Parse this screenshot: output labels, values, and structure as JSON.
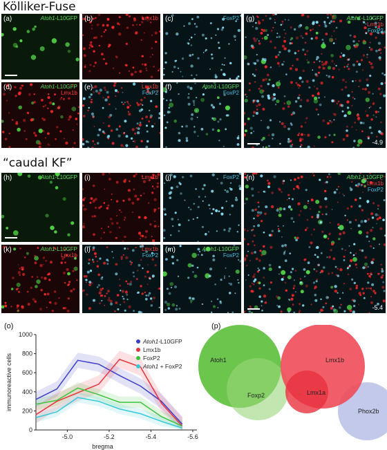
{
  "sections": {
    "top_title": "Kölliker-Fuse",
    "mid_title": "“caudal KF”"
  },
  "panels": {
    "a": {
      "letter": "(a)",
      "labels": [
        {
          "text": "Atoh1",
          "suffix": "-L10GFP",
          "color": "g"
        }
      ]
    },
    "b": {
      "letter": "(b)",
      "labels": [
        {
          "text": "Lmx1b",
          "color": "r"
        }
      ]
    },
    "c": {
      "letter": "(c)",
      "labels": [
        {
          "text": "FoxP2",
          "color": "c"
        }
      ]
    },
    "d": {
      "letter": "(d)",
      "labels": [
        {
          "text": "Atoh1",
          "suffix": "-L10GFP",
          "color": "g"
        },
        {
          "text": "Lmx1b",
          "color": "r"
        }
      ]
    },
    "e": {
      "letter": "(e)",
      "labels": [
        {
          "text": "Lmx1b",
          "color": "r"
        },
        {
          "text": "FoxP2",
          "color": "c"
        }
      ]
    },
    "f": {
      "letter": "(f)",
      "labels": [
        {
          "text": "Atoh1",
          "suffix": "-L10GFP",
          "color": "g"
        },
        {
          "text": "FoxP2",
          "color": "c"
        }
      ]
    },
    "g": {
      "letter": "(g)",
      "labels": [
        {
          "text": "Atoh1",
          "suffix": "-L10GFP",
          "color": "g"
        },
        {
          "text": "Lmx1b",
          "color": "r"
        },
        {
          "text": "FoxP2",
          "color": "c"
        }
      ],
      "number": "-4.9"
    },
    "h": {
      "letter": "(h)",
      "labels": [
        {
          "text": "Atoh1",
          "suffix": "-L10GFP",
          "color": "g"
        }
      ]
    },
    "i": {
      "letter": "(i)",
      "labels": [
        {
          "text": "Lmx1b",
          "color": "r"
        }
      ]
    },
    "j": {
      "letter": "(j)",
      "labels": [
        {
          "text": "FoxP2",
          "color": "c"
        }
      ]
    },
    "k": {
      "letter": "(k)",
      "labels": [
        {
          "text": "Atoh1",
          "suffix": "-L10GFP",
          "color": "g"
        },
        {
          "text": "Lmx1b",
          "color": "r"
        }
      ]
    },
    "l": {
      "letter": "(l)",
      "labels": [
        {
          "text": "Lmx1b",
          "color": "r"
        },
        {
          "text": "FoxP2",
          "color": "c"
        }
      ]
    },
    "m": {
      "letter": "(m)",
      "labels": [
        {
          "text": "Atoh1",
          "suffix": "-L10GFP",
          "color": "g"
        },
        {
          "text": "FoxP2",
          "color": "c"
        }
      ]
    },
    "n": {
      "letter": "(n)",
      "labels": [
        {
          "text": "Atoh1",
          "suffix": "-L10GFP",
          "color": "g"
        },
        {
          "text": "Lmx1b",
          "color": "r"
        },
        {
          "text": "FoxP2",
          "color": "c"
        }
      ],
      "number": "-5.4"
    }
  },
  "chart_letter": "(o)",
  "venn_letter": "(p)",
  "chart_data": {
    "type": "line",
    "xlabel": "bregma",
    "ylabel": "immunoreactive cells",
    "xlim": [
      -4.85,
      -5.62
    ],
    "ylim": [
      0,
      1000
    ],
    "xticks": [
      -5.0,
      -5.2,
      -5.4,
      -5.6
    ],
    "xtick_labels": [
      "-5.0",
      "-5.2",
      "-5.4",
      "-5.6"
    ],
    "yticks": [
      0,
      200,
      400,
      600,
      800,
      1000
    ],
    "ytick_labels": [
      "0",
      "200",
      "400",
      "600",
      "800",
      "1000"
    ],
    "x": [
      -4.85,
      -4.95,
      -5.05,
      -5.15,
      -5.25,
      -5.35,
      -5.45,
      -5.55
    ],
    "series": [
      {
        "name": "Atoh1",
        "name_suffix": "-L10GFP",
        "italic": true,
        "color": "#3b3ec9",
        "values": [
          320,
          430,
          730,
          690,
          570,
          460,
          300,
          60
        ],
        "band": 80
      },
      {
        "name": "Lmx1b",
        "italic": false,
        "color": "#e8323a",
        "values": [
          160,
          300,
          390,
          480,
          740,
          660,
          280,
          40
        ],
        "band": 90
      },
      {
        "name": "FoxP2",
        "italic": false,
        "color": "#3cc23c",
        "values": [
          270,
          310,
          440,
          370,
          290,
          290,
          140,
          40
        ],
        "band": 60
      },
      {
        "name": "Atoh1",
        "name_suffix": " + FoxP2",
        "italic": true,
        "color": "#35c9d9",
        "values": [
          130,
          190,
          340,
          300,
          220,
          170,
          90,
          20
        ],
        "band": 50
      }
    ],
    "legend_position": "top-right"
  },
  "venn": {
    "circles": [
      {
        "label": "Atoh1",
        "color": "#5cbf3a",
        "opacity": 0.9
      },
      {
        "label": "Foxp2",
        "color": "#9ad67a",
        "opacity": 0.6
      },
      {
        "label": "Lmx1b",
        "color": "#f04b58",
        "opacity": 0.9
      },
      {
        "label": "Lmx1a",
        "color": "#e8323e",
        "opacity": 0.8
      },
      {
        "label": "Phox2b",
        "color": "#b7bfe6",
        "opacity": 0.85
      }
    ]
  }
}
